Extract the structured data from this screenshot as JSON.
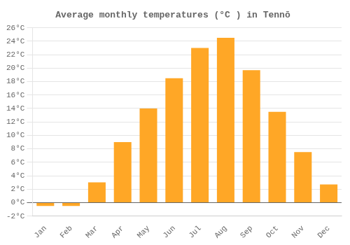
{
  "chart_data": {
    "type": "bar",
    "title": "Average monthly temperatures (°C ) in Tennō",
    "categories": [
      "Jan",
      "Feb",
      "Mar",
      "Apr",
      "May",
      "Jun",
      "Jul",
      "Aug",
      "Sep",
      "Oct",
      "Nov",
      "Dec"
    ],
    "values": [
      -0.5,
      -0.5,
      3.0,
      9.0,
      14.0,
      18.5,
      23.0,
      24.5,
      19.7,
      13.5,
      7.5,
      2.7
    ],
    "color": "#FFA726",
    "ylim": [
      -2,
      26
    ],
    "yticks": [
      {
        "value": -2,
        "label": "-2°C"
      },
      {
        "value": 0,
        "label": "0°C"
      },
      {
        "value": 2,
        "label": "2°C"
      },
      {
        "value": 4,
        "label": "4°C"
      },
      {
        "value": 6,
        "label": "6°C"
      },
      {
        "value": 8,
        "label": "8°C"
      },
      {
        "value": 10,
        "label": "10°C"
      },
      {
        "value": 12,
        "label": "12°C"
      },
      {
        "value": 14,
        "label": "14°C"
      },
      {
        "value": 16,
        "label": "16°C"
      },
      {
        "value": 18,
        "label": "18°C"
      },
      {
        "value": 20,
        "label": "20°C"
      },
      {
        "value": 22,
        "label": "22°C"
      },
      {
        "value": 24,
        "label": "24°C"
      },
      {
        "value": 26,
        "label": "26°C"
      }
    ],
    "grid": true
  }
}
